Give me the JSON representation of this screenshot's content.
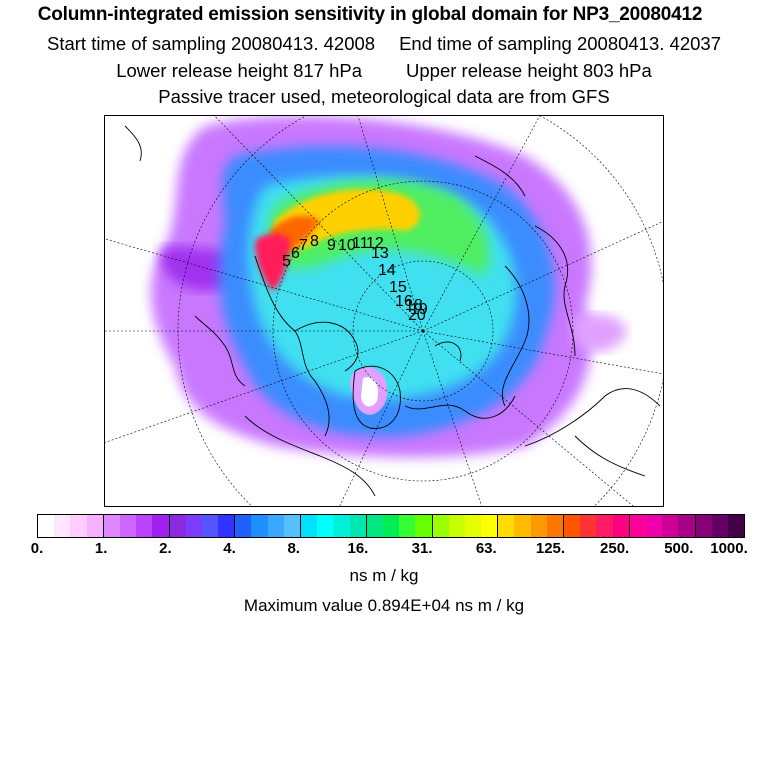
{
  "header": {
    "title": "Column-integrated emission sensitivity in global domain for NP3_20080412",
    "start_label": "Start time of sampling 20080413. 42008",
    "end_label": "End time of sampling 20080413. 42037",
    "lower_label": "Lower release height  817 hPa",
    "upper_label": "Upper release height  803 hPa",
    "tracer_label": "Passive tracer used, meteorological data are from GFS"
  },
  "map": {
    "projection": "north-polar-stereographic",
    "trajectory_labels": [
      "5",
      "6",
      "7",
      "8",
      "9",
      "10",
      "11",
      "12",
      "13",
      "14",
      "15",
      "16",
      "18",
      "19",
      "20"
    ]
  },
  "colorbar": {
    "ticks": [
      "0.",
      "1.",
      "2.",
      "4.",
      "8.",
      "16.",
      "31.",
      "63.",
      "125.",
      "250.",
      "500.",
      "1000."
    ],
    "colors": [
      "#ffffff",
      "#ffe6ff",
      "#ffccff",
      "#f5b0ff",
      "#e088ff",
      "#cc66ff",
      "#bb44ff",
      "#a020f0",
      "#8a2be2",
      "#7b3cff",
      "#5555ff",
      "#3333ff",
      "#2060ff",
      "#1e90ff",
      "#3aa8ff",
      "#56c0ff",
      "#00e0ff",
      "#00ffff",
      "#00f0d8",
      "#00e8b0",
      "#00e680",
      "#00ee55",
      "#33ff33",
      "#66ff00",
      "#99ff00",
      "#c8ff00",
      "#e6ff00",
      "#ffff00",
      "#ffdd00",
      "#ffbb00",
      "#ff9900",
      "#ff7700",
      "#ff5500",
      "#ff3333",
      "#ff1a66",
      "#ff0080",
      "#ff0099",
      "#ee00aa",
      "#cc0099",
      "#aa0088",
      "#880077",
      "#660066",
      "#440044"
    ],
    "unit": "ns m / kg"
  },
  "footer": {
    "max_value": "Maximum value  0.894E+04 ns m / kg"
  }
}
